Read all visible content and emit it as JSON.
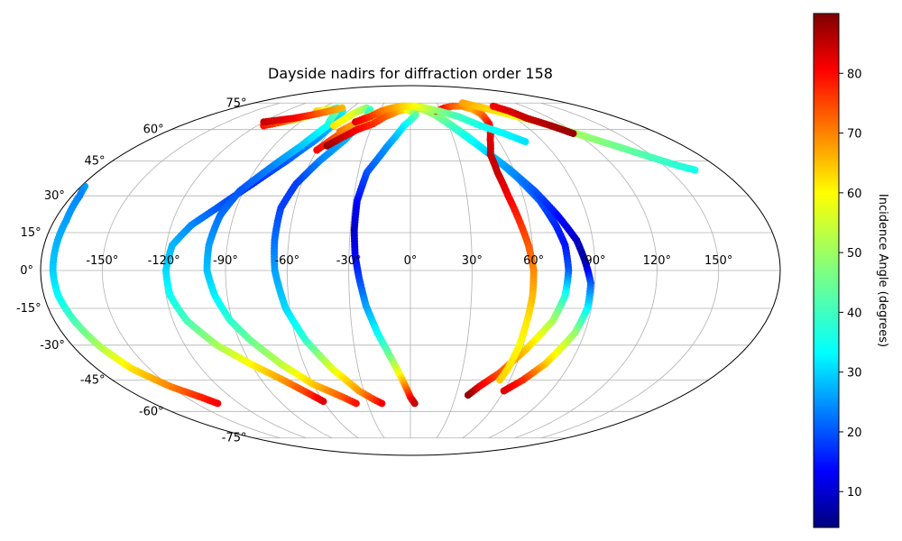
{
  "chart_data": {
    "type": "scatter",
    "projection": "mollweide",
    "title": "Dayside nadirs for diffraction order 158",
    "colorbar": {
      "label": "Incidence Angle (degrees)",
      "range": [
        4,
        90
      ],
      "ticks": [
        "10",
        "20",
        "30",
        "40",
        "50",
        "60",
        "70",
        "80"
      ],
      "tick_values": [
        10,
        20,
        30,
        40,
        50,
        60,
        70,
        80
      ],
      "colormap": "jet"
    },
    "grid": true,
    "lon_ticks": [
      {
        "value": -150,
        "label": "-150°"
      },
      {
        "value": -120,
        "label": "-120°"
      },
      {
        "value": -90,
        "label": "-90°"
      },
      {
        "value": -60,
        "label": "-60°"
      },
      {
        "value": -30,
        "label": "-30°"
      },
      {
        "value": 0,
        "label": "0°"
      },
      {
        "value": 30,
        "label": "30°"
      },
      {
        "value": 60,
        "label": "60°"
      },
      {
        "value": 90,
        "label": "90°"
      },
      {
        "value": 120,
        "label": "120°"
      },
      {
        "value": 150,
        "label": "150°"
      }
    ],
    "lat_ticks": [
      {
        "value": 75,
        "label": "75°"
      },
      {
        "value": 60,
        "label": "60°"
      },
      {
        "value": 45,
        "label": "45°"
      },
      {
        "value": 30,
        "label": "30°"
      },
      {
        "value": 15,
        "label": "15°"
      },
      {
        "value": 0,
        "label": "0°"
      },
      {
        "value": -15,
        "label": "-15°"
      },
      {
        "value": -30,
        "label": "-30°"
      },
      {
        "value": -45,
        "label": "-45°"
      },
      {
        "value": -60,
        "label": "-60°"
      },
      {
        "value": -75,
        "label": "-75°"
      }
    ],
    "tracks": [
      {
        "points": [
          [
            -115,
            62,
            78
          ],
          [
            -105,
            64,
            72
          ],
          [
            -95,
            66,
            60
          ],
          [
            -85,
            69,
            50
          ],
          [
            -75,
            72,
            42
          ],
          [
            -65,
            70,
            36
          ],
          [
            -60,
            64,
            32
          ],
          [
            -65,
            55,
            27
          ],
          [
            -75,
            45,
            22
          ],
          [
            -87,
            35,
            18
          ],
          [
            -100,
            25,
            22
          ],
          [
            -110,
            18,
            26
          ],
          [
            -117,
            10,
            30
          ],
          [
            -119,
            0,
            33
          ],
          [
            -118,
            -10,
            37
          ],
          [
            -113,
            -20,
            42
          ],
          [
            -103,
            -30,
            50
          ],
          [
            -90,
            -38,
            58
          ],
          [
            -77,
            -45,
            66
          ],
          [
            -65,
            -52,
            76
          ],
          [
            -60,
            -55,
            82
          ]
        ]
      },
      {
        "points": [
          [
            -90,
            70,
            62
          ],
          [
            -80,
            71,
            55
          ],
          [
            -70,
            69,
            46
          ],
          [
            -65,
            62,
            38
          ],
          [
            -72,
            52,
            32
          ],
          [
            -82,
            42,
            26
          ],
          [
            -92,
            32,
            22
          ],
          [
            -97,
            22,
            24
          ],
          [
            -99,
            10,
            28
          ],
          [
            -99,
            0,
            31
          ],
          [
            -96,
            -10,
            35
          ],
          [
            -91,
            -20,
            40
          ],
          [
            -84,
            -28,
            45
          ],
          [
            -73,
            -38,
            52
          ],
          [
            -60,
            -47,
            62
          ],
          [
            -45,
            -53,
            72
          ],
          [
            -38,
            -56,
            78
          ]
        ]
      },
      {
        "points": [
          [
            -60,
            62,
            60
          ],
          [
            -52,
            69,
            55
          ],
          [
            -45,
            72,
            48
          ],
          [
            -40,
            71,
            42
          ],
          [
            -38,
            66,
            36
          ],
          [
            -45,
            55,
            30
          ],
          [
            -55,
            45,
            26
          ],
          [
            -63,
            35,
            20
          ],
          [
            -67,
            25,
            20
          ],
          [
            -67,
            12,
            24
          ],
          [
            -66,
            0,
            28
          ],
          [
            -62,
            -15,
            33
          ],
          [
            -55,
            -28,
            40
          ],
          [
            -45,
            -40,
            55
          ],
          [
            -33,
            -50,
            66
          ],
          [
            -25,
            -54,
            74
          ],
          [
            -20,
            -56,
            80
          ]
        ]
      },
      {
        "points": [
          [
            -60,
            50,
            80
          ],
          [
            -52,
            57,
            72
          ],
          [
            -45,
            60,
            68
          ],
          [
            -37,
            62,
            64
          ],
          [
            -32,
            64,
            60
          ],
          [
            -28,
            66,
            57
          ],
          [
            -22,
            68,
            58
          ],
          [
            -13,
            70,
            62
          ],
          [
            -5,
            71,
            66
          ],
          [
            3,
            72,
            64
          ],
          [
            13,
            71,
            60
          ],
          [
            22,
            68,
            55
          ],
          [
            30,
            64,
            48
          ],
          [
            40,
            57,
            40
          ],
          [
            50,
            48,
            33
          ],
          [
            60,
            38,
            27
          ],
          [
            68,
            28,
            22
          ],
          [
            73,
            18,
            18
          ],
          [
            76,
            10,
            16
          ],
          [
            77,
            0,
            22
          ],
          [
            76,
            -10,
            38
          ],
          [
            72,
            -20,
            50
          ],
          [
            62,
            -32,
            62
          ],
          [
            52,
            -42,
            72
          ],
          [
            43,
            -48,
            80
          ],
          [
            38,
            -52,
            88
          ]
        ]
      },
      {
        "points": [
          [
            -52,
            59,
            70
          ],
          [
            -40,
            66,
            62
          ],
          [
            -25,
            71,
            58
          ],
          [
            -10,
            73,
            56
          ],
          [
            0,
            73,
            55
          ],
          [
            10,
            72,
            52
          ],
          [
            22,
            68,
            48
          ],
          [
            32,
            62,
            42
          ],
          [
            45,
            52,
            35
          ],
          [
            57,
            42,
            28
          ],
          [
            67,
            32,
            22
          ],
          [
            75,
            22,
            16
          ],
          [
            82,
            12,
            10
          ],
          [
            85,
            4,
            7
          ],
          [
            88,
            -5,
            22
          ],
          [
            88,
            -15,
            35
          ],
          [
            85,
            -25,
            48
          ],
          [
            76,
            -38,
            62
          ],
          [
            68,
            -45,
            75
          ],
          [
            60,
            -50,
            82
          ]
        ]
      },
      {
        "points": [
          [
            -55,
            52,
            88
          ],
          [
            -48,
            56,
            84
          ],
          [
            -40,
            60,
            80
          ],
          [
            -30,
            63,
            76
          ],
          [
            -22,
            67,
            72
          ],
          [
            -12,
            70,
            66
          ],
          [
            -5,
            71,
            60
          ],
          [
            0,
            70,
            55
          ],
          [
            5,
            68,
            45
          ],
          [
            -5,
            62,
            36
          ],
          [
            -15,
            52,
            28
          ],
          [
            -25,
            40,
            22
          ],
          [
            -28,
            28,
            16
          ],
          [
            -28,
            16,
            10
          ],
          [
            -27,
            6,
            14
          ],
          [
            -25,
            -3,
            20
          ],
          [
            -22,
            -14,
            28
          ],
          [
            -17,
            -25,
            36
          ],
          [
            -11,
            -35,
            46
          ],
          [
            -6,
            -43,
            58
          ],
          [
            -3,
            -48,
            68
          ],
          [
            0,
            -53,
            78
          ],
          [
            3,
            -56,
            84
          ]
        ]
      },
      {
        "points": [
          [
            25,
            70,
            82
          ],
          [
            35,
            72,
            78
          ],
          [
            45,
            73,
            72
          ],
          [
            55,
            73,
            68
          ],
          [
            62,
            71,
            64
          ],
          [
            65,
            68,
            70
          ],
          [
            63,
            63,
            78
          ],
          [
            55,
            55,
            82
          ],
          [
            50,
            48,
            84
          ],
          [
            50,
            40,
            84
          ],
          [
            52,
            30,
            80
          ],
          [
            55,
            20,
            76
          ],
          [
            58,
            10,
            72
          ],
          [
            60,
            0,
            68
          ],
          [
            60,
            -10,
            64
          ],
          [
            59,
            -20,
            60
          ],
          [
            58,
            -30,
            58
          ],
          [
            56,
            -40,
            60
          ],
          [
            54,
            -45,
            62
          ]
        ]
      },
      {
        "points": [
          [
            60,
            75,
            66
          ],
          [
            75,
            72,
            62
          ],
          [
            90,
            68,
            58
          ],
          [
            105,
            64,
            54
          ],
          [
            120,
            58,
            50
          ],
          [
            135,
            52,
            46
          ],
          [
            150,
            46,
            42
          ],
          [
            158,
            43,
            40
          ],
          [
            165,
            41,
            38
          ]
        ]
      },
      {
        "points": [
          [
            88,
            73,
            80
          ],
          [
            95,
            70,
            82
          ],
          [
            100,
            66,
            84
          ],
          [
            110,
            62,
            86
          ],
          [
            118,
            58,
            88
          ]
        ]
      },
      {
        "points": [
          [
            -178,
            34,
            28
          ],
          [
            -176,
            30,
            26
          ],
          [
            -174,
            20,
            28
          ],
          [
            -174,
            10,
            30
          ],
          [
            -174,
            0,
            32
          ],
          [
            -173,
            -10,
            36
          ],
          [
            -170,
            -20,
            42
          ],
          [
            -166,
            -30,
            50
          ],
          [
            -160,
            -40,
            60
          ],
          [
            -150,
            -48,
            68
          ],
          [
            -140,
            -53,
            76
          ],
          [
            -135,
            -56,
            80
          ]
        ]
      },
      {
        "points": [
          [
            -120,
            64,
            84
          ],
          [
            -100,
            66,
            80
          ],
          [
            -88,
            68,
            74
          ],
          [
            -78,
            70,
            68
          ],
          [
            -70,
            72,
            64
          ]
        ]
      },
      {
        "points": [
          [
            -45,
            64,
            82
          ],
          [
            -35,
            67,
            76
          ],
          [
            -28,
            70,
            70
          ],
          [
            -18,
            72,
            66
          ],
          [
            -8,
            73,
            62
          ],
          [
            5,
            73,
            58
          ],
          [
            15,
            72,
            54
          ],
          [
            28,
            70,
            48
          ],
          [
            42,
            67,
            42
          ],
          [
            55,
            62,
            38
          ],
          [
            68,
            58,
            36
          ],
          [
            78,
            54,
            34
          ]
        ]
      }
    ]
  }
}
